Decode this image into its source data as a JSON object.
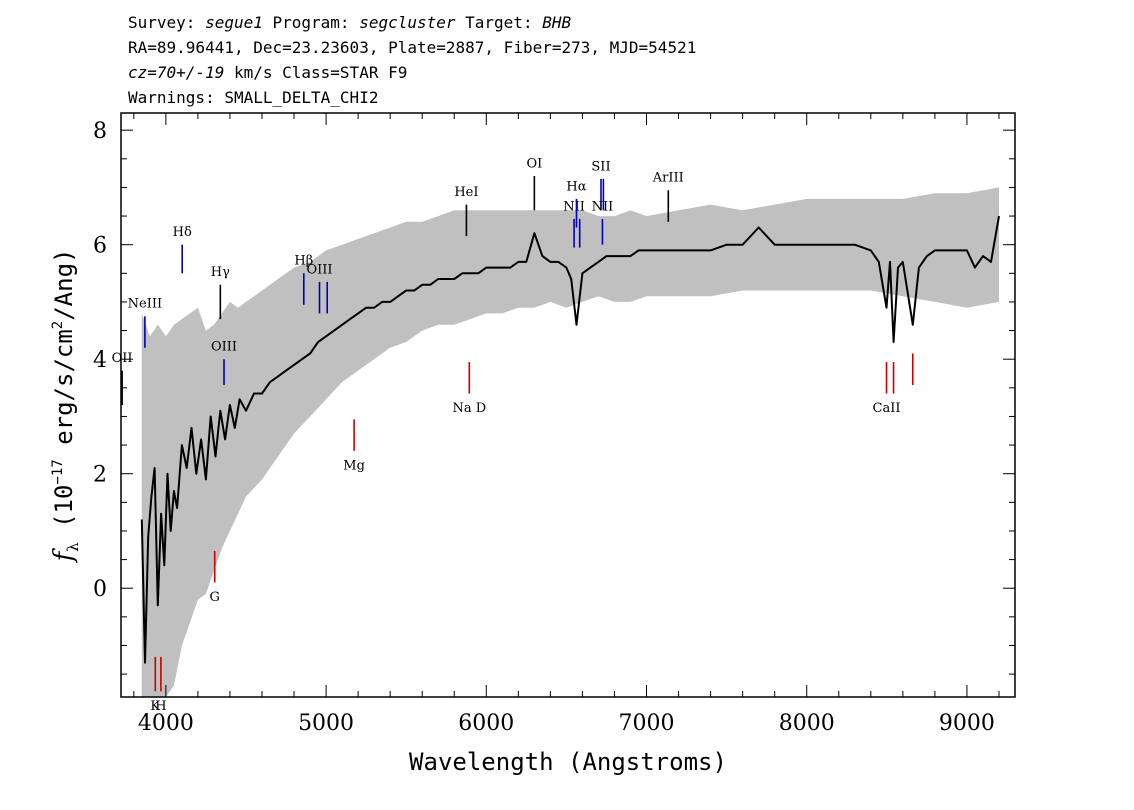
{
  "header": {
    "line1": [
      {
        "t": "Survey: "
      },
      {
        "t": "segue1",
        "i": true
      },
      {
        "t": " Program: "
      },
      {
        "t": "segcluster",
        "i": true
      },
      {
        "t": " Target: "
      },
      {
        "t": "BHB",
        "i": true
      }
    ],
    "line2": [
      {
        "t": "RA=89.96441, Dec=23.23603, Plate=2887, Fiber=273, MJD=54521"
      }
    ],
    "line3": [
      {
        "t": "cz=70+/-19",
        "i": true
      },
      {
        "t": " km/s Class=STAR F9"
      }
    ],
    "line4": [
      {
        "t": "Warnings: SMALL_DELTA_CHI2"
      }
    ]
  },
  "chart_data": {
    "type": "line",
    "xlabel": "Wavelength (Angstroms)",
    "ylabel": "f_λ (10^-17 erg/s/cm^2/Ang)",
    "ylabel_parts": {
      "f": "f",
      "sub": "λ",
      "pre": " (10",
      "exp1": "−17",
      "mid": " erg/s/cm",
      "exp2": "2",
      "post": "/Ang)"
    },
    "xlim": [
      3720,
      9300
    ],
    "ylim": [
      -1.9,
      8.3
    ],
    "x_ticks": [
      4000,
      5000,
      6000,
      7000,
      8000,
      9000
    ],
    "y_ticks": [
      0,
      2,
      4,
      6,
      8
    ],
    "grid": false,
    "series": [
      {
        "role": "noise-band",
        "color": "#c0c0c0",
        "x": [
          3850,
          3900,
          3950,
          4000,
          4050,
          4100,
          4150,
          4200,
          4250,
          4300,
          4350,
          4400,
          4450,
          4500,
          4600,
          4700,
          4800,
          4900,
          5000,
          5100,
          5200,
          5300,
          5400,
          5500,
          5600,
          5700,
          5800,
          5900,
          6000,
          6100,
          6200,
          6300,
          6400,
          6500,
          6600,
          6700,
          6800,
          6900,
          7000,
          7200,
          7400,
          7600,
          7800,
          8000,
          8200,
          8400,
          8600,
          8800,
          9000,
          9200
        ],
        "upper": [
          4.8,
          4.4,
          4.6,
          4.4,
          4.6,
          4.7,
          4.8,
          4.9,
          4.5,
          4.6,
          4.8,
          5.0,
          4.9,
          5.0,
          5.2,
          5.4,
          5.6,
          5.7,
          5.9,
          6.0,
          6.1,
          6.2,
          6.3,
          6.4,
          6.4,
          6.5,
          6.6,
          6.6,
          6.6,
          6.6,
          6.6,
          6.6,
          6.6,
          6.6,
          6.6,
          6.5,
          6.5,
          6.6,
          6.5,
          6.6,
          6.7,
          6.6,
          6.7,
          6.8,
          6.8,
          6.8,
          6.8,
          6.9,
          6.9,
          7.0
        ],
        "lower": [
          -1.9,
          -1.9,
          -1.9,
          -1.9,
          -1.7,
          -1.0,
          -0.6,
          -0.2,
          -0.1,
          0.3,
          0.7,
          1.0,
          1.3,
          1.6,
          1.9,
          2.3,
          2.7,
          3.0,
          3.3,
          3.6,
          3.8,
          4.0,
          4.2,
          4.3,
          4.5,
          4.6,
          4.6,
          4.7,
          4.8,
          4.8,
          4.9,
          4.9,
          5.0,
          4.9,
          5.0,
          5.1,
          5.0,
          5.0,
          5.1,
          5.1,
          5.1,
          5.2,
          5.2,
          5.2,
          5.2,
          5.2,
          5.1,
          5.0,
          4.9,
          5.0
        ]
      },
      {
        "role": "flux",
        "color": "#000000",
        "x": [
          3850,
          3870,
          3890,
          3910,
          3930,
          3950,
          3970,
          3990,
          4010,
          4030,
          4050,
          4070,
          4100,
          4130,
          4160,
          4190,
          4220,
          4250,
          4280,
          4310,
          4340,
          4370,
          4400,
          4430,
          4460,
          4500,
          4550,
          4600,
          4650,
          4700,
          4750,
          4800,
          4850,
          4900,
          4950,
          5000,
          5050,
          5100,
          5150,
          5200,
          5250,
          5300,
          5350,
          5400,
          5450,
          5500,
          5550,
          5600,
          5650,
          5700,
          5750,
          5800,
          5850,
          5900,
          5950,
          6000,
          6050,
          6100,
          6150,
          6200,
          6250,
          6300,
          6350,
          6400,
          6450,
          6500,
          6530,
          6563,
          6600,
          6650,
          6700,
          6750,
          6800,
          6850,
          6900,
          6950,
          7000,
          7050,
          7100,
          7150,
          7200,
          7300,
          7400,
          7500,
          7600,
          7700,
          7800,
          7900,
          8000,
          8100,
          8200,
          8300,
          8400,
          8450,
          8498,
          8520,
          8542,
          8570,
          8600,
          8662,
          8700,
          8750,
          8800,
          8850,
          8900,
          8950,
          9000,
          9050,
          9100,
          9150,
          9200
        ],
        "y": [
          1.2,
          -1.3,
          0.9,
          1.6,
          2.1,
          -0.3,
          1.3,
          0.4,
          2.0,
          1.0,
          1.7,
          1.4,
          2.5,
          2.1,
          2.8,
          2.0,
          2.6,
          1.9,
          3.0,
          2.3,
          3.1,
          2.6,
          3.2,
          2.8,
          3.3,
          3.1,
          3.4,
          3.4,
          3.6,
          3.7,
          3.8,
          3.9,
          4.0,
          4.1,
          4.3,
          4.4,
          4.5,
          4.6,
          4.7,
          4.8,
          4.9,
          4.9,
          5.0,
          5.0,
          5.1,
          5.2,
          5.2,
          5.3,
          5.3,
          5.4,
          5.4,
          5.4,
          5.5,
          5.5,
          5.5,
          5.6,
          5.6,
          5.6,
          5.6,
          5.7,
          5.7,
          6.2,
          5.8,
          5.7,
          5.7,
          5.6,
          5.4,
          4.6,
          5.5,
          5.6,
          5.7,
          5.8,
          5.8,
          5.8,
          5.8,
          5.9,
          5.9,
          5.9,
          5.9,
          5.9,
          5.9,
          5.9,
          5.9,
          6.0,
          6.0,
          6.3,
          6.0,
          6.0,
          6.0,
          6.0,
          6.0,
          6.0,
          5.9,
          5.7,
          4.9,
          5.7,
          4.3,
          5.6,
          5.7,
          4.6,
          5.6,
          5.8,
          5.9,
          5.9,
          5.9,
          5.9,
          5.9,
          5.6,
          5.8,
          5.7,
          6.5
        ]
      }
    ],
    "line_markers": [
      {
        "label": "OII",
        "color": "#000000",
        "x": 3727,
        "y1": 3.2,
        "y2": 3.8,
        "label_y": 3.95,
        "label_side": "above"
      },
      {
        "label": "NeIII",
        "color": "#0000bb",
        "x": 3869,
        "y1": 4.2,
        "y2": 4.75,
        "label_y": 4.9,
        "label_side": "above"
      },
      {
        "label": "Hδ",
        "color": "#0000bb",
        "x": 4102,
        "y1": 5.5,
        "y2": 6.0,
        "label_y": 6.15,
        "label_side": "above"
      },
      {
        "label": "Hγ",
        "color": "#000000",
        "x": 4340,
        "y1": 4.7,
        "y2": 5.3,
        "label_y": 5.45,
        "label_side": "above"
      },
      {
        "label": "OIII",
        "color": "#0000bb",
        "x": 4363,
        "y1": 3.55,
        "y2": 4.0,
        "label_y": 4.15,
        "label_side": "above"
      },
      {
        "label": "Hβ",
        "color": "#0000bb",
        "x": 4861,
        "y1": 4.95,
        "y2": 5.5,
        "label_y": 5.65,
        "label_side": "above"
      },
      {
        "label": "OIII",
        "color": "#0000bb",
        "x": 4959,
        "y1": 4.8,
        "y2": 5.35,
        "label_y": 5.5,
        "label_side": "above"
      },
      {
        "label": "",
        "color": "#0000bb",
        "x": 5007,
        "y1": 4.8,
        "y2": 5.35
      },
      {
        "label": "HeI",
        "color": "#000000",
        "x": 5876,
        "y1": 6.15,
        "y2": 6.7,
        "label_y": 6.85,
        "label_side": "above"
      },
      {
        "label": "OI",
        "color": "#000000",
        "x": 6300,
        "y1": 6.6,
        "y2": 7.2,
        "label_y": 7.35,
        "label_side": "above"
      },
      {
        "label": "NII",
        "color": "#0000bb",
        "x": 6548,
        "y1": 5.95,
        "y2": 6.45,
        "label_y": 6.6,
        "label_side": "above"
      },
      {
        "label": "Hα",
        "color": "#0000bb",
        "x": 6563,
        "y1": 6.3,
        "y2": 6.8,
        "label_y": 6.95,
        "label_side": "above"
      },
      {
        "label": "",
        "color": "#0000bb",
        "x": 6583,
        "y1": 5.95,
        "y2": 6.45
      },
      {
        "label": "SII",
        "color": "#0000bb",
        "x": 6716,
        "y1": 6.6,
        "y2": 7.15,
        "label_y": 7.3,
        "label_side": "above"
      },
      {
        "label": "",
        "color": "#0000bb",
        "x": 6731,
        "y1": 6.6,
        "y2": 7.15
      },
      {
        "label": "NII",
        "color": "#0000bb",
        "x": 6725,
        "y1": 6.0,
        "y2": 6.45,
        "label_y": 6.6,
        "label_side": "above"
      },
      {
        "label": "ArIII",
        "color": "#000000",
        "x": 7136,
        "y1": 6.4,
        "y2": 6.95,
        "label_y": 7.1,
        "label_side": "above"
      },
      {
        "label": "K",
        "color": "#cc0000",
        "x": 3934,
        "y1": -1.8,
        "y2": -1.2,
        "label_y": -1.95,
        "label_side": "below"
      },
      {
        "label": "H",
        "color": "#cc0000",
        "x": 3969,
        "y1": -1.8,
        "y2": -1.2,
        "label_y": -1.95,
        "label_side": "below"
      },
      {
        "label": "G",
        "color": "#cc0000",
        "x": 4305,
        "y1": 0.1,
        "y2": 0.65,
        "label_y": -0.05,
        "label_side": "below"
      },
      {
        "label": "Mg",
        "color": "#cc0000",
        "x": 5175,
        "y1": 2.4,
        "y2": 2.95,
        "label_y": 2.25,
        "label_side": "below"
      },
      {
        "label": "Na D",
        "color": "#cc0000",
        "x": 5894,
        "y1": 3.4,
        "y2": 3.95,
        "label_y": 3.25,
        "label_side": "below"
      },
      {
        "label": "CaII",
        "color": "#cc0000",
        "x": 8498,
        "y1": 3.4,
        "y2": 3.95,
        "label_y": 3.25,
        "label_side": "below"
      },
      {
        "label": "",
        "color": "#cc0000",
        "x": 8542,
        "y1": 3.4,
        "y2": 3.95
      },
      {
        "label": "",
        "color": "#cc0000",
        "x": 8662,
        "y1": 3.55,
        "y2": 4.1
      }
    ]
  }
}
